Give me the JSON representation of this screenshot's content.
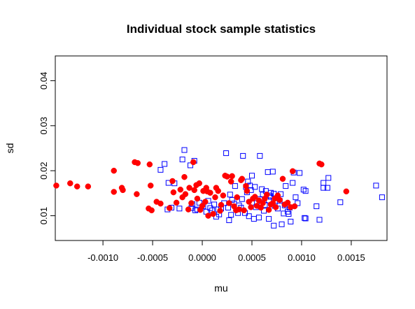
{
  "chart_data": {
    "type": "scatter",
    "title": "Individual stock sample statistics",
    "xlabel": "mu",
    "ylabel": "sd",
    "xlim": [
      -0.00148,
      0.00186
    ],
    "ylim": [
      0.0045,
      0.0455
    ],
    "x_ticks": [
      -0.001,
      -0.0005,
      0.0,
      0.0005,
      0.001,
      0.0015
    ],
    "x_tick_labels": [
      "-0.0010",
      "-0.0005",
      "0.0000",
      "0.0005",
      "0.0010",
      "0.0015"
    ],
    "y_ticks": [
      0.01,
      0.02,
      0.03,
      0.04
    ],
    "y_tick_labels": [
      "0.01",
      "0.02",
      "0.03",
      "0.04"
    ],
    "grid": false,
    "series": [
      {
        "marker": "open-square",
        "color": "#0000ff",
        "points": [
          [
            -0.00042,
            0.0202
          ],
          [
            -0.00038,
            0.0215
          ],
          [
            -0.00018,
            0.0246
          ],
          [
            -0.0002,
            0.0225
          ],
          [
            -8e-05,
            0.0222
          ],
          [
            -0.00012,
            0.0212
          ],
          [
            0.00024,
            0.0239
          ],
          [
            0.00041,
            0.0233
          ],
          [
            0.00058,
            0.0233
          ],
          [
            0.00066,
            0.0197
          ],
          [
            0.00071,
            0.0198
          ],
          [
            0.00092,
            0.0196
          ],
          [
            0.00098,
            0.0195
          ],
          [
            0.00122,
            0.0173
          ],
          [
            0.00127,
            0.0184
          ],
          [
            0.00175,
            0.0167
          ],
          [
            0.00181,
            0.0141
          ],
          [
            0.00102,
            0.0158
          ],
          [
            0.00104,
            0.0155
          ],
          [
            0.00122,
            0.0162
          ],
          [
            0.00126,
            0.0162
          ],
          [
            0.00139,
            0.013
          ],
          [
            0.00115,
            0.0121
          ],
          [
            0.00104,
            0.0094
          ],
          [
            0.00103,
            0.0095
          ],
          [
            0.00118,
            0.0091
          ],
          [
            0.00089,
            0.0087
          ],
          [
            0.00087,
            0.0104
          ],
          [
            0.00086,
            0.0109
          ],
          [
            0.00083,
            0.0123
          ],
          [
            0.00078,
            0.0133
          ],
          [
            0.00075,
            0.0139
          ],
          [
            0.00072,
            0.0149
          ],
          [
            0.00069,
            0.0151
          ],
          [
            0.00064,
            0.0155
          ],
          [
            0.0006,
            0.0159
          ],
          [
            0.00053,
            0.0164
          ],
          [
            0.00049,
            0.0157
          ],
          [
            0.00044,
            0.0164
          ],
          [
            0.00033,
            0.0166
          ],
          [
            0.00028,
            0.0147
          ],
          [
            0.00022,
            0.0128
          ],
          [
            0.00026,
            0.0118
          ],
          [
            0.00032,
            0.0127
          ],
          [
            0.00039,
            0.0118
          ],
          [
            0.00043,
            0.0106
          ],
          [
            0.00047,
            0.0099
          ],
          [
            0.00052,
            0.0093
          ],
          [
            0.00057,
            0.0096
          ],
          [
            0.00062,
            0.0111
          ],
          [
            0.00067,
            0.0093
          ],
          [
            0.00072,
            0.0078
          ],
          [
            0.0008,
            0.0081
          ],
          [
            0.00088,
            0.0118
          ],
          [
            0.00079,
            0.0148
          ],
          [
            0.00094,
            0.0141
          ],
          [
            0.00096,
            0.0128
          ],
          [
            0.0001,
            0.0112
          ],
          [
            0.00014,
            0.0098
          ],
          [
            0.00017,
            0.0103
          ],
          [
            0.00019,
            0.0116
          ],
          [
            0.00027,
            0.009
          ],
          [
            0.00029,
            0.0102
          ],
          [
            4e-05,
            0.0109
          ],
          [
            1e-05,
            0.0121
          ],
          [
            -3e-05,
            0.0129
          ],
          [
            -7e-05,
            0.0112
          ],
          [
            -0.00011,
            0.0117
          ],
          [
            -0.0001,
            0.0126
          ],
          [
            -0.00023,
            0.0116
          ],
          [
            -0.00031,
            0.0118
          ],
          [
            -0.00035,
            0.0114
          ],
          [
            -0.00034,
            0.0173
          ],
          [
            -0.00028,
            0.0172
          ],
          [
            0.00016,
            0.0114
          ],
          [
            0.00036,
            0.0106
          ],
          [
            0.0004,
            0.0137
          ],
          [
            0.00045,
            0.0152
          ],
          [
            0.00048,
            0.0167
          ],
          [
            0.00046,
            0.0176
          ],
          [
            0.0005,
            0.0189
          ],
          [
            0.00061,
            0.0147
          ],
          [
            0.00069,
            0.0142
          ],
          [
            0.00073,
            0.0122
          ],
          [
            0.00076,
            0.0116
          ],
          [
            0.00082,
            0.0105
          ],
          [
            0.00067,
            0.0134
          ],
          [
            0.00063,
            0.0124
          ],
          [
            0.00058,
            0.0137
          ],
          [
            0.00054,
            0.0119
          ],
          [
            0.0003,
            0.0135
          ],
          [
            0.00012,
            0.0125
          ],
          [
            8e-05,
            0.0117
          ],
          [
            6e-05,
            0.0133
          ],
          [
            -5e-05,
            0.0114
          ],
          [
            0.00084,
            0.0166
          ],
          [
            0.00091,
            0.0173
          ],
          [
            0.00068,
            0.0145
          ],
          [
            0.00055,
            0.0128
          ],
          [
            0.00037,
            0.0123
          ]
        ]
      },
      {
        "marker": "filled-circle",
        "color": "#ff0000",
        "points": [
          [
            -0.00147,
            0.0167
          ],
          [
            -0.00133,
            0.0172
          ],
          [
            -0.00126,
            0.0165
          ],
          [
            -0.00115,
            0.0165
          ],
          [
            -0.00089,
            0.02
          ],
          [
            -0.00089,
            0.0153
          ],
          [
            -0.00081,
            0.0162
          ],
          [
            -0.0008,
            0.0157
          ],
          [
            -0.00068,
            0.0219
          ],
          [
            -0.00065,
            0.0217
          ],
          [
            -0.00066,
            0.0148
          ],
          [
            -0.00053,
            0.0214
          ],
          [
            -0.00052,
            0.0167
          ],
          [
            -0.00054,
            0.0116
          ],
          [
            -0.00051,
            0.0112
          ],
          [
            -0.00046,
            0.0131
          ],
          [
            -0.00042,
            0.0127
          ],
          [
            -0.00033,
            0.0117
          ],
          [
            -0.0003,
            0.0177
          ],
          [
            -0.00029,
            0.0152
          ],
          [
            -0.00026,
            0.0129
          ],
          [
            -0.00022,
            0.0158
          ],
          [
            -0.0002,
            0.0141
          ],
          [
            -0.00018,
            0.0186
          ],
          [
            -0.00017,
            0.0148
          ],
          [
            -0.00014,
            0.0114
          ],
          [
            -0.00013,
            0.0162
          ],
          [
            -0.00011,
            0.0128
          ],
          [
            -9e-05,
            0.0219
          ],
          [
            -8e-05,
            0.0157
          ],
          [
            -6e-05,
            0.0168
          ],
          [
            -5e-05,
            0.0138
          ],
          [
            -3e-05,
            0.0172
          ],
          [
            -2e-05,
            0.0113
          ],
          [
            0.0,
            0.0122
          ],
          [
            1e-05,
            0.0155
          ],
          [
            3e-05,
            0.0131
          ],
          [
            4e-05,
            0.0162
          ],
          [
            5e-05,
            0.0154
          ],
          [
            6e-05,
            0.01
          ],
          [
            8e-05,
            0.0151
          ],
          [
            0.00011,
            0.0104
          ],
          [
            0.00013,
            0.0141
          ],
          [
            0.00014,
            0.0162
          ],
          [
            0.00016,
            0.0155
          ],
          [
            0.00018,
            0.0111
          ],
          [
            0.00019,
            0.0124
          ],
          [
            0.00021,
            0.0145
          ],
          [
            0.00023,
            0.0189
          ],
          [
            0.00025,
            0.0187
          ],
          [
            0.00027,
            0.0128
          ],
          [
            0.0003,
            0.0188
          ],
          [
            0.00032,
            0.0121
          ],
          [
            0.00034,
            0.0112
          ],
          [
            0.00035,
            0.0141
          ],
          [
            0.00037,
            0.0114
          ],
          [
            0.00039,
            0.0179
          ],
          [
            0.0004,
            0.0182
          ],
          [
            0.00042,
            0.0112
          ],
          [
            0.00045,
            0.0155
          ],
          [
            0.00047,
            0.0131
          ],
          [
            0.00049,
            0.0119
          ],
          [
            0.00051,
            0.0138
          ],
          [
            0.00053,
            0.0142
          ],
          [
            0.00055,
            0.0122
          ],
          [
            0.00057,
            0.0134
          ],
          [
            0.00059,
            0.0118
          ],
          [
            0.00061,
            0.0128
          ],
          [
            0.00063,
            0.0138
          ],
          [
            0.00065,
            0.0147
          ],
          [
            0.00067,
            0.0113
          ],
          [
            0.00069,
            0.0125
          ],
          [
            0.00071,
            0.0128
          ],
          [
            0.00073,
            0.0138
          ],
          [
            0.00076,
            0.0145
          ],
          [
            0.00078,
            0.0135
          ],
          [
            0.00081,
            0.0182
          ],
          [
            0.00086,
            0.0129
          ],
          [
            0.00089,
            0.0119
          ],
          [
            0.00091,
            0.0199
          ],
          [
            0.00093,
            0.0121
          ],
          [
            0.00118,
            0.0216
          ],
          [
            0.0012,
            0.0214
          ],
          [
            0.00145,
            0.0154
          ],
          [
            0.00083,
            0.0125
          ],
          [
            0.00074,
            0.0119
          ],
          [
            0.00044,
            0.0166
          ],
          [
            0.00029,
            0.0176
          ]
        ]
      }
    ]
  }
}
